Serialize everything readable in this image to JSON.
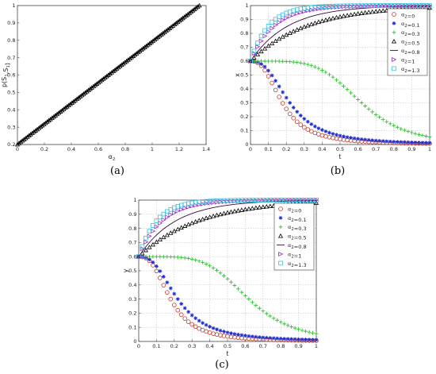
{
  "captions": [
    "(a)",
    "(b)",
    "(c)"
  ],
  "chart_data": [
    {
      "type": "line",
      "panel": "a",
      "xlabel": "α2",
      "ylabel": "p(S1,S1)",
      "xlim": [
        0,
        1.4
      ],
      "ylim": [
        0.2,
        1
      ],
      "xticks": [
        0,
        0.2,
        0.4,
        0.6,
        0.8,
        1,
        1.2,
        1.4
      ],
      "yticks": [
        0.2,
        0.3,
        0.4,
        0.5,
        0.6,
        0.7,
        0.8,
        0.9,
        1
      ],
      "series": [
        {
          "x_start": 0,
          "x_end": 1.35,
          "y_start": 0.2,
          "y_end": 1,
          "marker": "triangle",
          "color": "#000000"
        }
      ],
      "grid": false
    },
    {
      "type": "line",
      "panel": "b",
      "xlabel": "t",
      "ylabel": "x",
      "xlim": [
        0,
        1
      ],
      "ylim": [
        0,
        1
      ],
      "xticks": [
        0,
        0.1,
        0.2,
        0.3,
        0.4,
        0.5,
        0.6,
        0.7,
        0.8,
        0.9,
        1
      ],
      "yticks": [
        0,
        0.1,
        0.2,
        0.3,
        0.4,
        0.5,
        0.6,
        0.7,
        0.8,
        0.9,
        1
      ],
      "x0": 0.6,
      "grid": true,
      "legend": "top-right",
      "series": [
        {
          "name": "α2=0",
          "alpha": 0,
          "marker": "circle",
          "color": "#c0392b"
        },
        {
          "name": "α2=0.1",
          "alpha": 0.1,
          "marker": "asterisk",
          "color": "#1f2fd0"
        },
        {
          "name": "α2=0.3",
          "alpha": 0.3,
          "marker": "plus",
          "color": "#2ec22e"
        },
        {
          "name": "α2=0.5",
          "alpha": 0.5,
          "marker": "triangle",
          "color": "#000000"
        },
        {
          "name": "α2=0.8",
          "alpha": 0.8,
          "marker": "line",
          "color": "#3a0a3a"
        },
        {
          "name": "α2=1",
          "alpha": 1,
          "marker": "triright",
          "color": "#9b26c9"
        },
        {
          "name": "α2=1.3",
          "alpha": 1.3,
          "marker": "square",
          "color": "#36c2e0"
        }
      ]
    },
    {
      "type": "line",
      "panel": "c",
      "xlabel": "t",
      "ylabel": "y",
      "xlim": [
        0,
        1
      ],
      "ylim": [
        0,
        1
      ],
      "xticks": [
        0,
        0.1,
        0.2,
        0.3,
        0.4,
        0.5,
        0.6,
        0.7,
        0.8,
        0.9,
        1
      ],
      "yticks": [
        0,
        0.1,
        0.2,
        0.3,
        0.4,
        0.5,
        0.6,
        0.7,
        0.8,
        0.9,
        1
      ],
      "x0": 0.6,
      "grid": true,
      "legend": "top-right",
      "series": [
        {
          "name": "α2=0",
          "alpha": 0,
          "marker": "circle",
          "color": "#c0392b"
        },
        {
          "name": "α2=0.1",
          "alpha": 0.1,
          "marker": "asterisk",
          "color": "#1f2fd0"
        },
        {
          "name": "α2=0.3",
          "alpha": 0.3,
          "marker": "plus",
          "color": "#2ec22e"
        },
        {
          "name": "α2=0.5",
          "alpha": 0.5,
          "marker": "triangle",
          "color": "#000000"
        },
        {
          "name": "α2=0.8",
          "alpha": 0.8,
          "marker": "line",
          "color": "#3a0a3a"
        },
        {
          "name": "α2=1",
          "alpha": 1,
          "marker": "triright",
          "color": "#9b26c9"
        },
        {
          "name": "α2=1.3",
          "alpha": 1.3,
          "marker": "square",
          "color": "#36c2e0"
        }
      ]
    }
  ]
}
